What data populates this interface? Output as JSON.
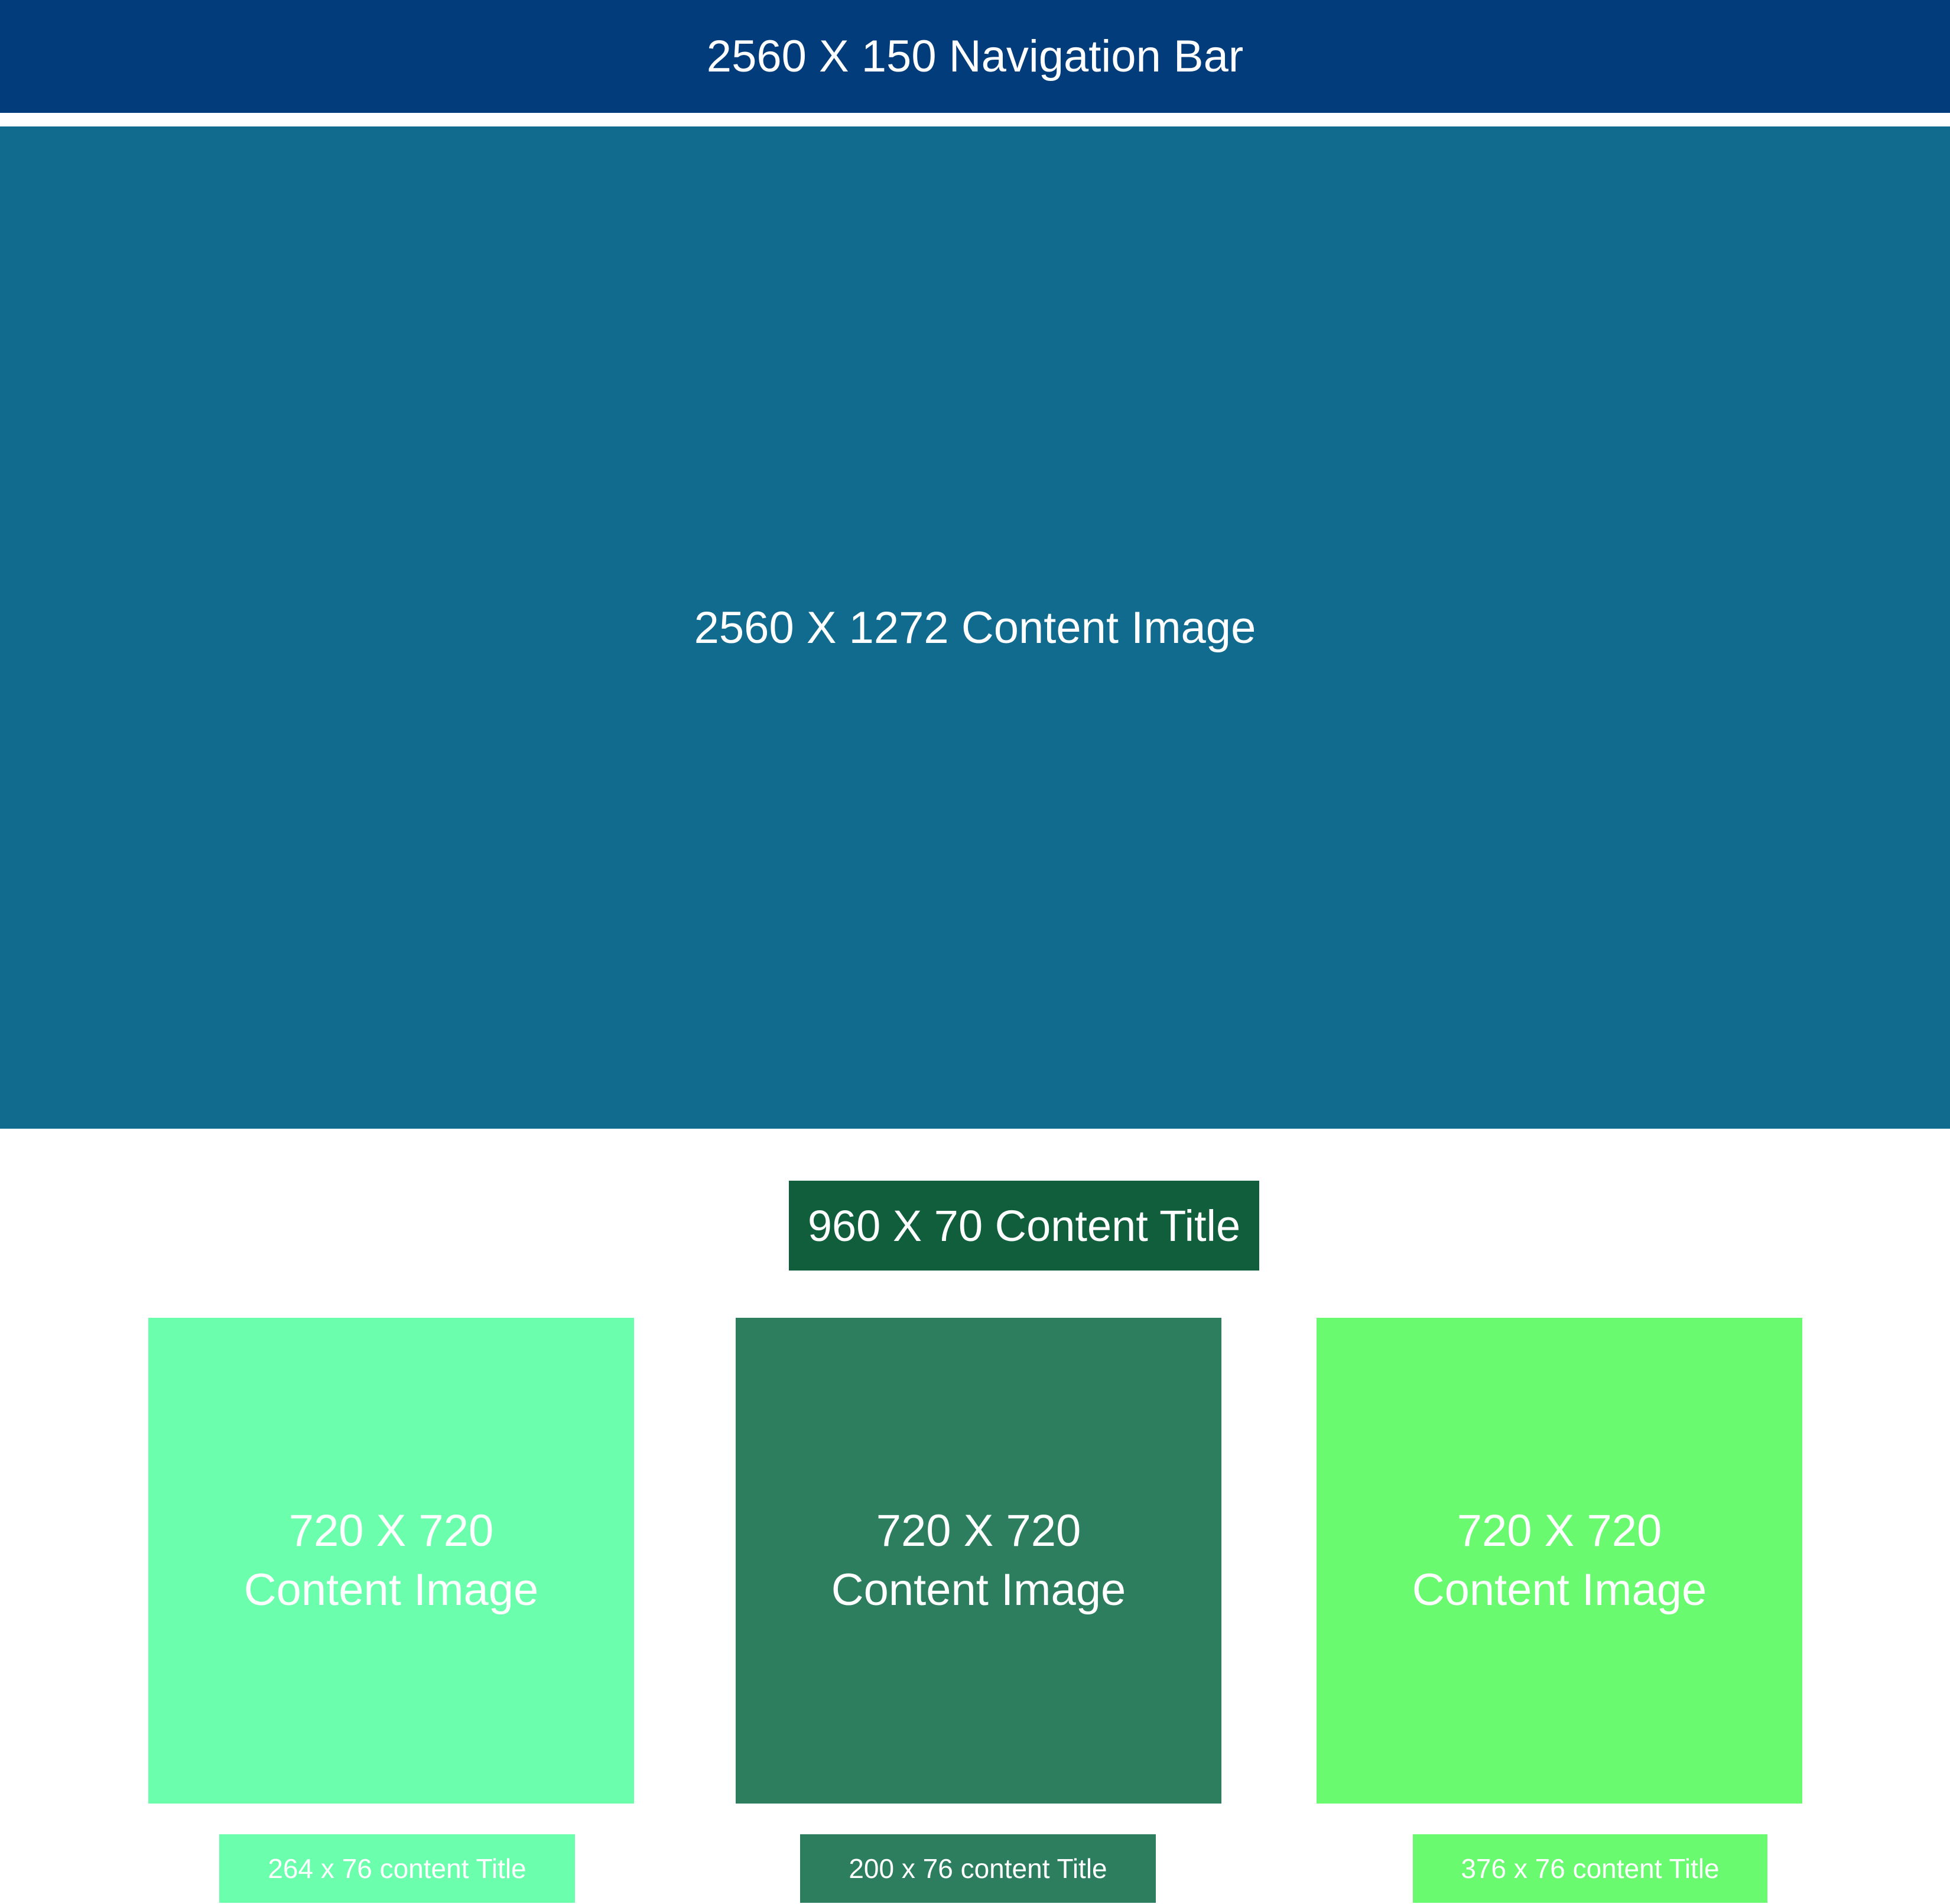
{
  "nav_bar": {
    "label": "2560 X 150 Navigation Bar",
    "color": "#033c7b"
  },
  "hero": {
    "label": "2560 X 1272 Content Image",
    "color": "#116b8f"
  },
  "content_title": {
    "label": "960 X 70 Content Title",
    "color": "#115e3d"
  },
  "cards": [
    {
      "line1": "720 X 720",
      "line2": "Content Image",
      "color": "#6bffad"
    },
    {
      "line1": "720 X 720",
      "line2": "Content Image",
      "color": "#2c7e5e"
    },
    {
      "line1": "720 X 720",
      "line2": "Content Image",
      "color": "#69fa6f"
    }
  ],
  "captions": [
    {
      "label": "264 x 76 content Title",
      "color": "#6bffad"
    },
    {
      "label": "200 x 76 content Title",
      "color": "#2c7e5e"
    },
    {
      "label": "376 x 76 content Title",
      "color": "#69fa6f"
    }
  ]
}
